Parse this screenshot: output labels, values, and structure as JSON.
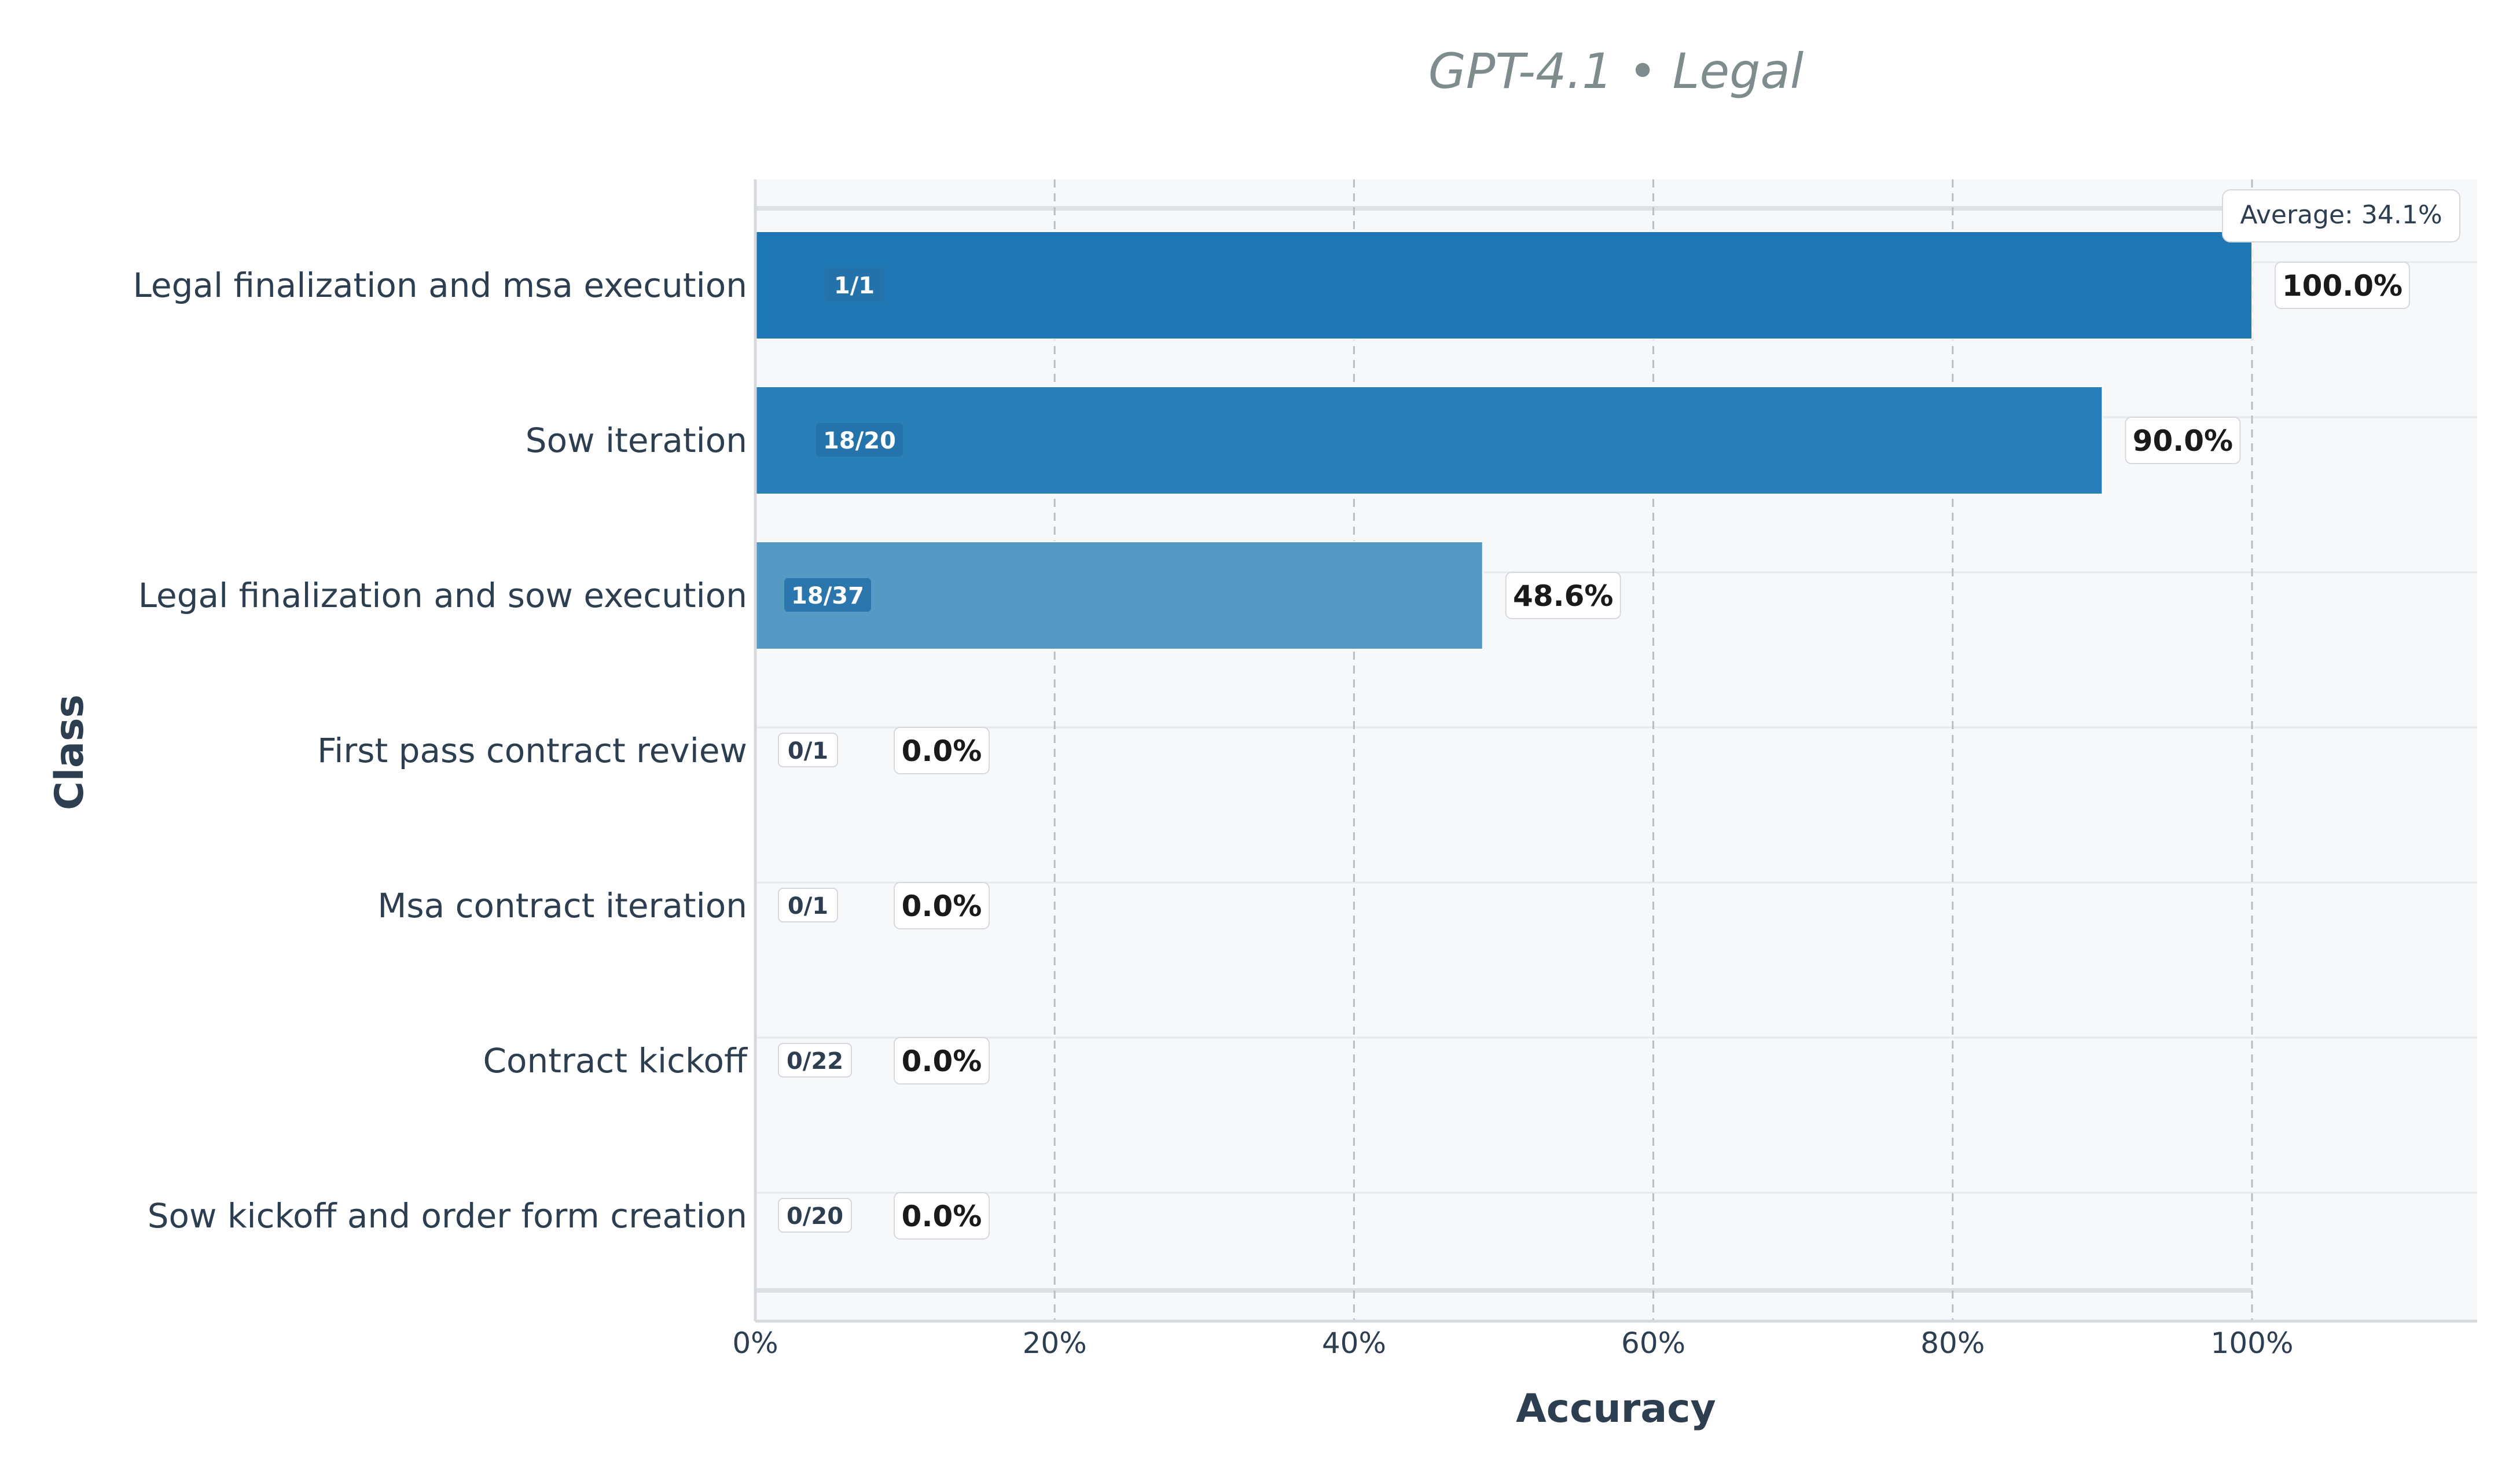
{
  "chart_data": {
    "type": "bar",
    "orientation": "horizontal",
    "title": "GPT-4.1 • Legal",
    "xlabel": "Accuracy",
    "ylabel": "Class",
    "xlim": [
      0,
      115
    ],
    "x_ticks": [
      "0%",
      "20%",
      "40%",
      "60%",
      "80%",
      "100%"
    ],
    "x_tick_values": [
      0,
      20,
      40,
      60,
      80,
      100
    ],
    "grid": true,
    "categories": [
      "Legal finalization and msa execution",
      "Sow iteration",
      "Legal finalization and sow execution",
      "First pass contract review",
      "Msa contract iteration",
      "Contract kickoff",
      "Sow kickoff and order form creation"
    ],
    "values": [
      100.0,
      90.0,
      48.6,
      0.0,
      0.0,
      0.0,
      0.0
    ],
    "value_labels": [
      "100.0%",
      "90.0%",
      "48.6%",
      "0.0%",
      "0.0%",
      "0.0%",
      "0.0%"
    ],
    "count_labels": [
      "1/1",
      "18/20",
      "18/37",
      "0/1",
      "0/1",
      "0/22",
      "0/20"
    ],
    "bar_colors": [
      "#1f77b4",
      "#2a7fb8",
      "#5599c5",
      "#dde9f3",
      "#dde9f3",
      "#dde9f3",
      "#dde9f3"
    ],
    "average": 34.1,
    "average_label": "Average: 34.1%"
  }
}
